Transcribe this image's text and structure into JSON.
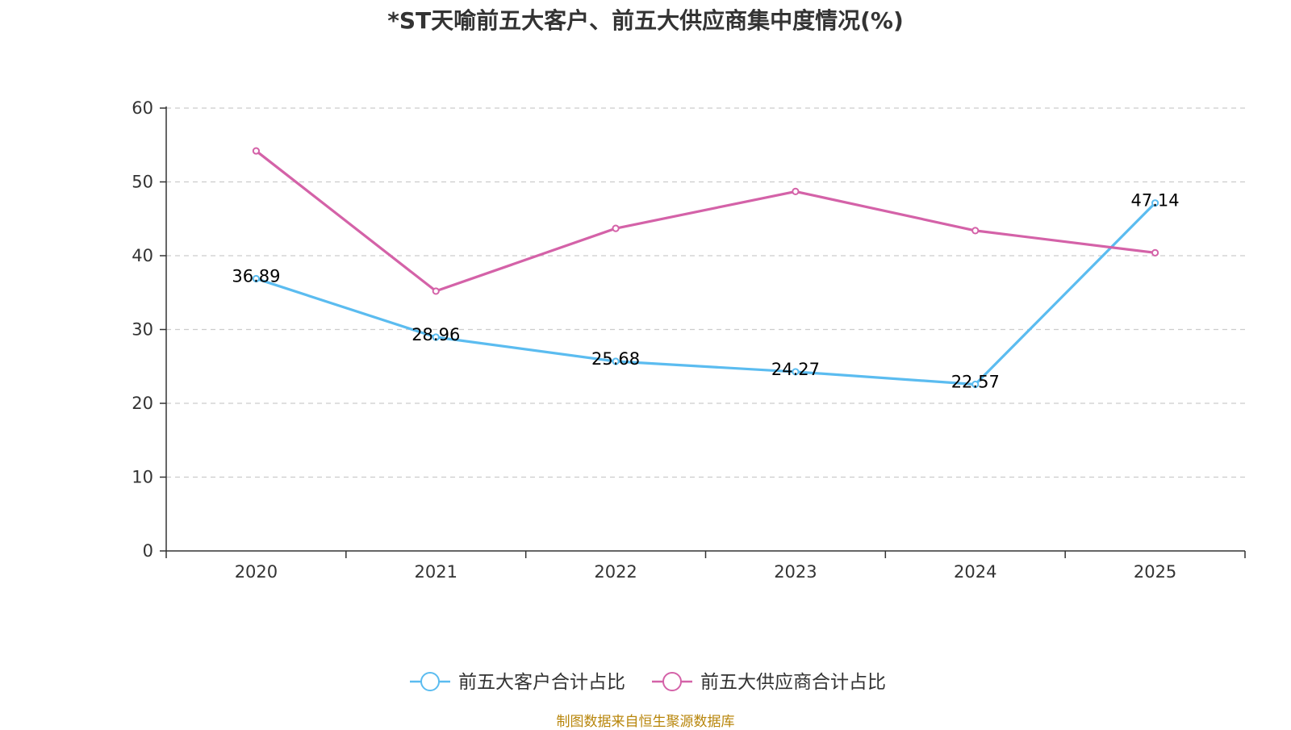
{
  "chart_data": {
    "type": "line",
    "title": "*ST天喻前五大客户、前五大供应商集中度情况(%)",
    "categories": [
      "2020",
      "2021",
      "2022",
      "2023",
      "2024",
      "2025"
    ],
    "ylim": [
      0,
      60
    ],
    "yticks": [
      "0",
      "10",
      "20",
      "30",
      "40",
      "50",
      "60"
    ],
    "grid": true,
    "legend_position": "bottom-center",
    "series": [
      {
        "name": "前五大客户合计占比",
        "color": "#5bbcf0",
        "values": [
          36.89,
          28.96,
          25.68,
          24.27,
          22.57,
          47.14
        ],
        "labels": [
          "36.89",
          "28.96",
          "25.68",
          "24.27",
          "22.57",
          "47.14"
        ]
      },
      {
        "name": "前五大供应商合计占比",
        "color": "#d462a8",
        "values": [
          54.2,
          35.2,
          43.7,
          48.7,
          43.4,
          40.4
        ]
      }
    ]
  },
  "footer": {
    "source": "制图数据来自恒生聚源数据库"
  }
}
